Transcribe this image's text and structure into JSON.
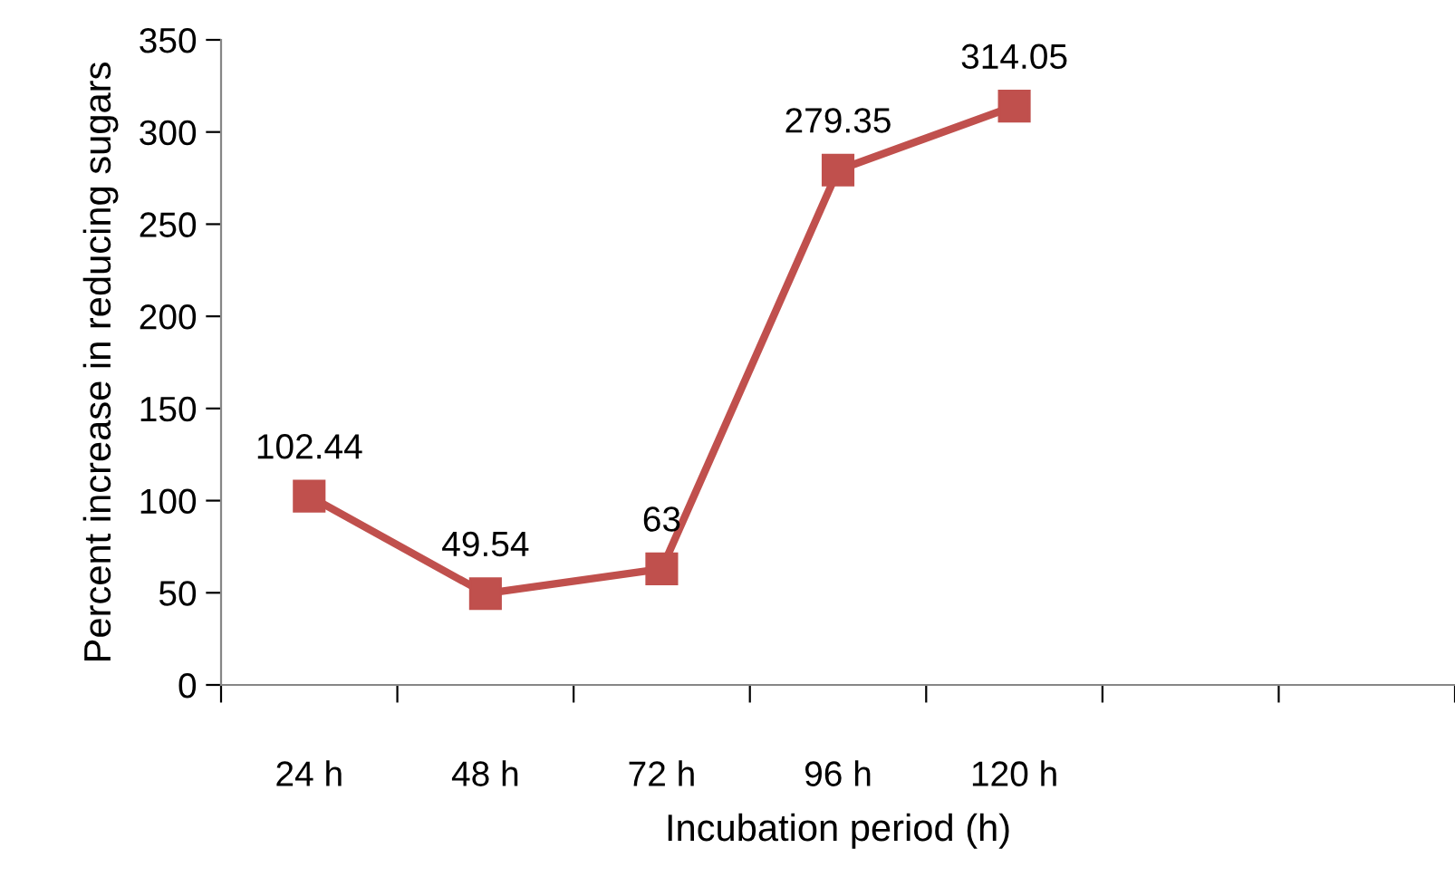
{
  "chart_data": {
    "type": "line",
    "xlabel": "Incubation period (h)",
    "ylabel": "Percent increase in reducing sugars",
    "categories": [
      "24 h",
      "48 h",
      "72 h",
      "96 h",
      "120 h",
      null,
      null
    ],
    "series": [
      {
        "color": "#c0504d",
        "values": [
          102.44,
          49.54,
          63,
          279.35,
          314.05,
          null,
          null
        ]
      }
    ],
    "ylim": [
      0,
      350
    ],
    "yticks": [
      0,
      50,
      100,
      150,
      200,
      250,
      300,
      350
    ],
    "data_labels": true,
    "grid": false,
    "legend": false,
    "marker": "square",
    "line_style": "solid"
  }
}
